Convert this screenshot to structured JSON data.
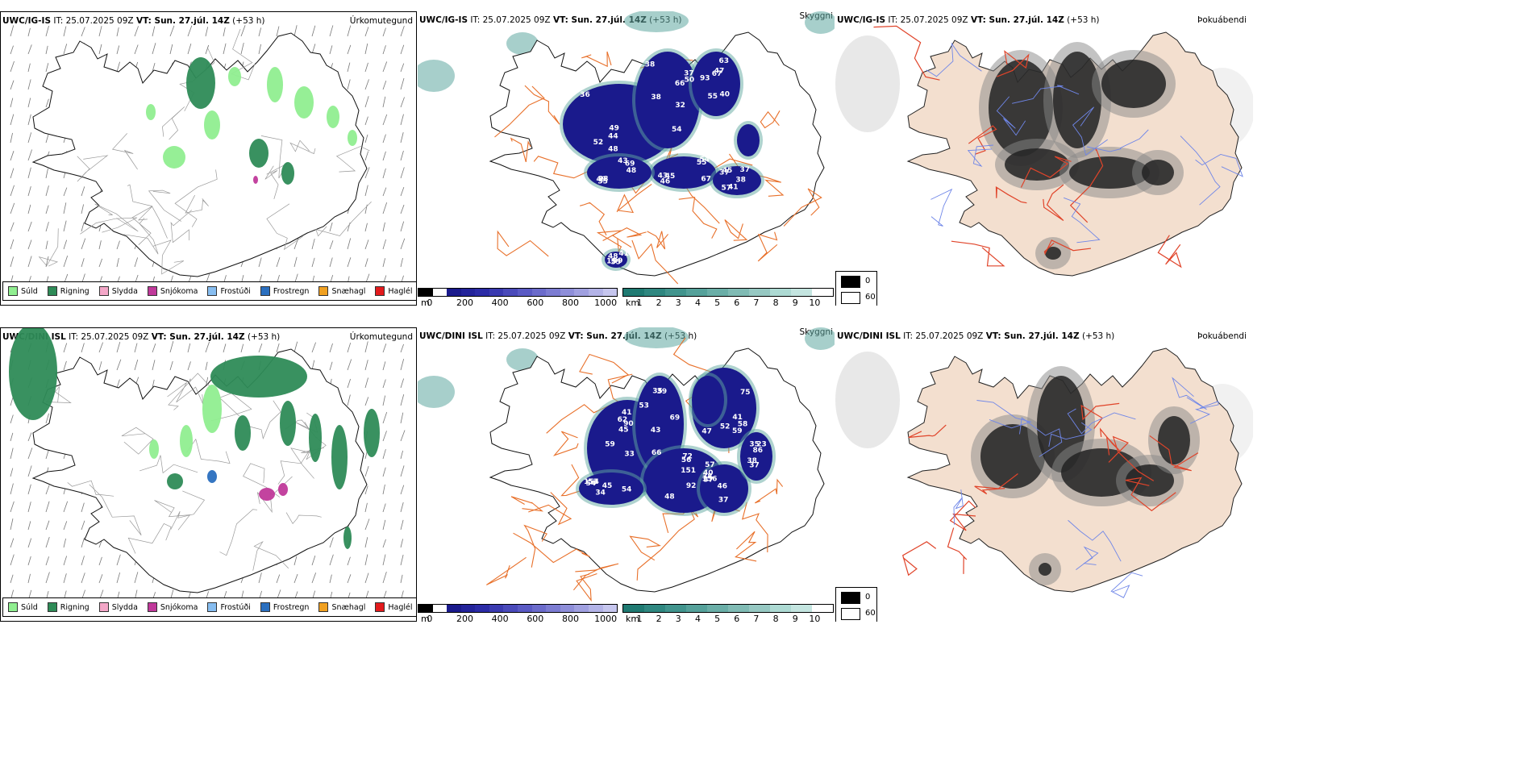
{
  "top": {
    "title_model": "UWC/IG-IS",
    "title_it": "IT: 25.07.2025 09Z",
    "title_vt": "VT: Sun. 27.júl. 14Z",
    "title_lead": "(+53 h)",
    "precip_label": "Úrkomutegund",
    "cloud_label": "Skyggni",
    "fog_label": "Þokuábendi",
    "cloud_numbers": [
      "52",
      "44",
      "38",
      "36",
      "49",
      "48",
      "32",
      "38",
      "50",
      "54",
      "66",
      "37",
      "93",
      "40",
      "63",
      "67",
      "55",
      "47",
      "46",
      "43",
      "55",
      "45",
      "67",
      "54",
      "57",
      "38",
      "37",
      "41",
      "45",
      "37",
      "35",
      "38",
      "49",
      "48",
      "69",
      "43",
      "49",
      "48",
      "55",
      "41",
      "15"
    ]
  },
  "bottom": {
    "title_model": "UWC/DINI ISL",
    "title_it": "IT: 25.07.2025 09Z",
    "title_vt": "VT: Sun. 27.júl. 14Z",
    "title_lead": "(+53 h)",
    "precip_label": "Úrkomutegund",
    "cloud_label": "Skyggni",
    "fog_label": "Þokuábendi",
    "cloud_numbers": [
      "41",
      "62",
      "45",
      "59",
      "90",
      "33",
      "35",
      "69",
      "66",
      "39",
      "53",
      "43",
      "58",
      "47",
      "59",
      "41",
      "52",
      "75",
      "72",
      "151",
      "48",
      "56",
      "92",
      "57",
      "156",
      "38",
      "46",
      "37",
      "37",
      "40",
      "53",
      "154",
      "54",
      "34",
      "45",
      "54",
      "38",
      "35",
      "23",
      "86",
      "37"
    ]
  },
  "precip_legend": [
    {
      "label": "Súld",
      "color": "#90ee90"
    },
    {
      "label": "Rigning",
      "color": "#2e8b57"
    },
    {
      "label": "Slydda",
      "color": "#f4a7c8"
    },
    {
      "label": "Snjókoma",
      "color": "#c0399a"
    },
    {
      "label": "Frostúði",
      "color": "#87bdf0"
    },
    {
      "label": "Frostregn",
      "color": "#2a6fbf"
    },
    {
      "label": "Snæhagl",
      "color": "#f0a020"
    },
    {
      "label": "Haglél",
      "color": "#e31a1c"
    }
  ],
  "cloudbase_bar": {
    "unit": "m",
    "ticks": [
      "0",
      "200",
      "400",
      "600",
      "800",
      "1000"
    ],
    "colors": [
      "#000000",
      "#ffffff",
      "#1a1a8c",
      "#23239a",
      "#2b2ba6",
      "#3a3ab0",
      "#4a4aba",
      "#5a5ac4",
      "#6b6bcb",
      "#7c7cd2",
      "#8e8ed9",
      "#a0a0e0",
      "#b3b3e7",
      "#c6c6ee"
    ]
  },
  "vis_bar": {
    "unit": "km",
    "ticks": [
      "1",
      "2",
      "3",
      "4",
      "5",
      "6",
      "7",
      "8",
      "9",
      "10"
    ],
    "colors": [
      "#1f7a72",
      "#2f8780",
      "#41948d",
      "#55a19a",
      "#6aaea7",
      "#80bbb4",
      "#96c8c2",
      "#addad3",
      "#c4e5e0",
      "#ffffff"
    ]
  },
  "fog_legend": {
    "high": "0",
    "low": "60"
  },
  "colors": {
    "land_fog": "#f3dfcf",
    "road": "#e8702a",
    "cloud_blue": "#1a1a8c",
    "teal": "#5fa8a0",
    "drizzle": "#90ee90",
    "rain": "#2e8b57"
  }
}
